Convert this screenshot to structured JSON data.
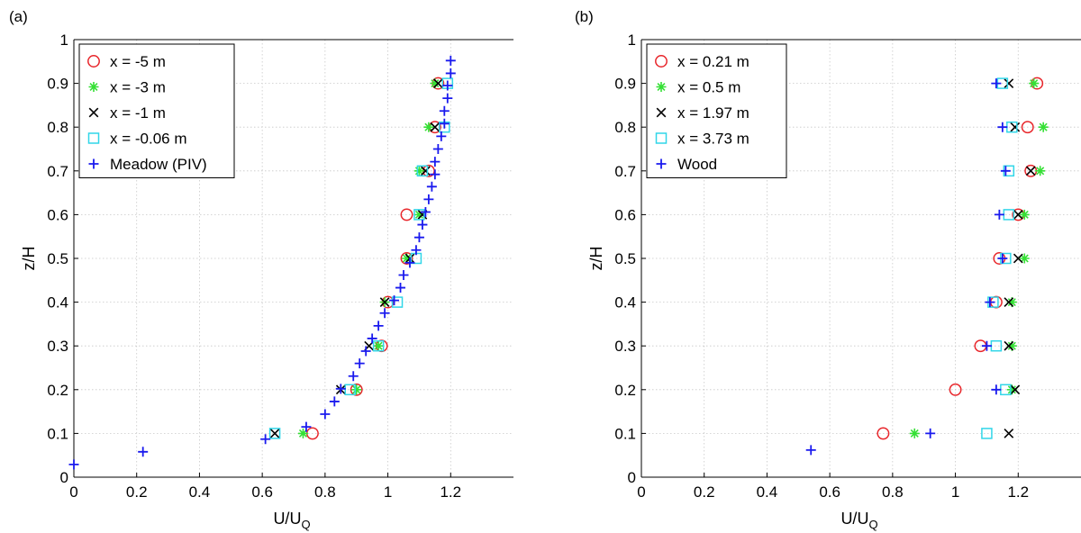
{
  "chart_data": [
    {
      "panel_label": "(a)",
      "type": "scatter",
      "xlabel": "U/U",
      "xlabel_sub": "Q",
      "ylabel": "z/H",
      "xlim": [
        0,
        1.4
      ],
      "ylim": [
        0,
        1
      ],
      "xticks": [
        0,
        0.2,
        0.4,
        0.6,
        0.8,
        1,
        1.2
      ],
      "xtick_labels": [
        "0",
        "0.2",
        "0.4",
        "0.6",
        "0.8",
        "1",
        "1.2"
      ],
      "yticks": [
        0,
        0.1,
        0.2,
        0.3,
        0.4,
        0.5,
        0.6,
        0.7,
        0.8,
        0.9,
        1
      ],
      "ytick_labels": [
        "0",
        "0.1",
        "0.2",
        "0.3",
        "0.4",
        "0.5",
        "0.6",
        "0.7",
        "0.8",
        "0.9",
        "1"
      ],
      "grid": true,
      "legend_position": "top-left",
      "series": [
        {
          "name": "x = -5 m",
          "marker": "circle",
          "color": "#e8262b",
          "points": [
            [
              0.76,
              0.1
            ],
            [
              0.9,
              0.2
            ],
            [
              0.98,
              0.3
            ],
            [
              1.0,
              0.4
            ],
            [
              1.06,
              0.5
            ],
            [
              1.06,
              0.6
            ],
            [
              1.13,
              0.7
            ],
            [
              1.15,
              0.8
            ],
            [
              1.16,
              0.9
            ]
          ]
        },
        {
          "name": "x = -3 m",
          "marker": "star",
          "color": "#35e035",
          "points": [
            [
              0.73,
              0.1
            ],
            [
              0.9,
              0.2
            ],
            [
              0.97,
              0.3
            ],
            [
              0.99,
              0.4
            ],
            [
              1.06,
              0.5
            ],
            [
              1.1,
              0.6
            ],
            [
              1.1,
              0.7
            ],
            [
              1.13,
              0.8
            ],
            [
              1.15,
              0.9
            ]
          ]
        },
        {
          "name": "x = -1 m",
          "marker": "x",
          "color": "#000000",
          "points": [
            [
              0.64,
              0.1
            ],
            [
              0.85,
              0.2
            ],
            [
              0.94,
              0.3
            ],
            [
              0.99,
              0.4
            ],
            [
              1.07,
              0.5
            ],
            [
              1.11,
              0.6
            ],
            [
              1.12,
              0.7
            ],
            [
              1.15,
              0.8
            ],
            [
              1.16,
              0.9
            ]
          ]
        },
        {
          "name": "x = -0.06 m",
          "marker": "square",
          "color": "#31d6e8",
          "points": [
            [
              0.64,
              0.1
            ],
            [
              0.88,
              0.2
            ],
            [
              0.97,
              0.3
            ],
            [
              1.03,
              0.4
            ],
            [
              1.09,
              0.5
            ],
            [
              1.1,
              0.6
            ],
            [
              1.11,
              0.7
            ],
            [
              1.18,
              0.8
            ],
            [
              1.19,
              0.9
            ]
          ]
        },
        {
          "name": "Meadow (PIV)",
          "marker": "plus",
          "color": "#1a1aee",
          "points": [
            [
              0.0,
              0.029
            ],
            [
              0.22,
              0.058
            ],
            [
              0.61,
              0.087
            ],
            [
              0.74,
              0.115
            ],
            [
              0.8,
              0.144
            ],
            [
              0.83,
              0.173
            ],
            [
              0.85,
              0.202
            ],
            [
              0.89,
              0.231
            ],
            [
              0.91,
              0.26
            ],
            [
              0.93,
              0.288
            ],
            [
              0.95,
              0.317
            ],
            [
              0.97,
              0.346
            ],
            [
              0.99,
              0.375
            ],
            [
              1.02,
              0.404
            ],
            [
              1.04,
              0.433
            ],
            [
              1.05,
              0.462
            ],
            [
              1.07,
              0.49
            ],
            [
              1.09,
              0.519
            ],
            [
              1.1,
              0.548
            ],
            [
              1.11,
              0.577
            ],
            [
              1.12,
              0.606
            ],
            [
              1.13,
              0.635
            ],
            [
              1.14,
              0.664
            ],
            [
              1.15,
              0.692
            ],
            [
              1.15,
              0.721
            ],
            [
              1.16,
              0.75
            ],
            [
              1.17,
              0.779
            ],
            [
              1.18,
              0.808
            ],
            [
              1.18,
              0.837
            ],
            [
              1.19,
              0.866
            ],
            [
              1.19,
              0.895
            ],
            [
              1.2,
              0.923
            ],
            [
              1.2,
              0.952
            ]
          ]
        }
      ]
    },
    {
      "panel_label": "(b)",
      "type": "scatter",
      "xlabel": "U/U",
      "xlabel_sub": "Q",
      "ylabel": "z/H",
      "xlim": [
        0,
        1.4
      ],
      "ylim": [
        0,
        1
      ],
      "xticks": [
        0,
        0.2,
        0.4,
        0.6,
        0.8,
        1,
        1.2
      ],
      "xtick_labels": [
        "0",
        "0.2",
        "0.4",
        "0.6",
        "0.8",
        "1",
        "1.2"
      ],
      "yticks": [
        0,
        0.1,
        0.2,
        0.3,
        0.4,
        0.5,
        0.6,
        0.7,
        0.8,
        0.9,
        1
      ],
      "ytick_labels": [
        "0",
        "0.1",
        "0.2",
        "0.3",
        "0.4",
        "0.5",
        "0.6",
        "0.7",
        "0.8",
        "0.9",
        "1"
      ],
      "grid": true,
      "legend_position": "top-left",
      "series": [
        {
          "name": "x = 0.21 m",
          "marker": "circle",
          "color": "#e8262b",
          "points": [
            [
              0.77,
              0.1
            ],
            [
              1.0,
              0.2
            ],
            [
              1.08,
              0.3
            ],
            [
              1.13,
              0.4
            ],
            [
              1.14,
              0.5
            ],
            [
              1.2,
              0.6
            ],
            [
              1.24,
              0.7
            ],
            [
              1.23,
              0.8
            ],
            [
              1.26,
              0.9
            ]
          ]
        },
        {
          "name": "x = 0.5 m",
          "marker": "star",
          "color": "#35e035",
          "points": [
            [
              0.87,
              0.1
            ],
            [
              1.18,
              0.2
            ],
            [
              1.18,
              0.3
            ],
            [
              1.18,
              0.4
            ],
            [
              1.22,
              0.5
            ],
            [
              1.22,
              0.6
            ],
            [
              1.27,
              0.7
            ],
            [
              1.28,
              0.8
            ],
            [
              1.25,
              0.9
            ]
          ]
        },
        {
          "name": "x = 1.97 m",
          "marker": "x",
          "color": "#000000",
          "points": [
            [
              1.17,
              0.1
            ],
            [
              1.19,
              0.2
            ],
            [
              1.17,
              0.3
            ],
            [
              1.17,
              0.4
            ],
            [
              1.2,
              0.5
            ],
            [
              1.2,
              0.6
            ],
            [
              1.24,
              0.7
            ],
            [
              1.19,
              0.8
            ],
            [
              1.17,
              0.9
            ]
          ]
        },
        {
          "name": "x = 3.73 m",
          "marker": "square",
          "color": "#31d6e8",
          "points": [
            [
              1.1,
              0.1
            ],
            [
              1.16,
              0.2
            ],
            [
              1.13,
              0.3
            ],
            [
              1.12,
              0.4
            ],
            [
              1.16,
              0.5
            ],
            [
              1.17,
              0.6
            ],
            [
              1.17,
              0.7
            ],
            [
              1.18,
              0.8
            ],
            [
              1.15,
              0.9
            ]
          ]
        },
        {
          "name": "Wood",
          "marker": "plus",
          "color": "#1a1aee",
          "points": [
            [
              0.54,
              0.062
            ],
            [
              0.92,
              0.1
            ],
            [
              1.13,
              0.2
            ],
            [
              1.1,
              0.3
            ],
            [
              1.11,
              0.4
            ],
            [
              1.15,
              0.5
            ],
            [
              1.14,
              0.6
            ],
            [
              1.16,
              0.7
            ],
            [
              1.15,
              0.8
            ],
            [
              1.13,
              0.9
            ]
          ]
        }
      ]
    }
  ]
}
